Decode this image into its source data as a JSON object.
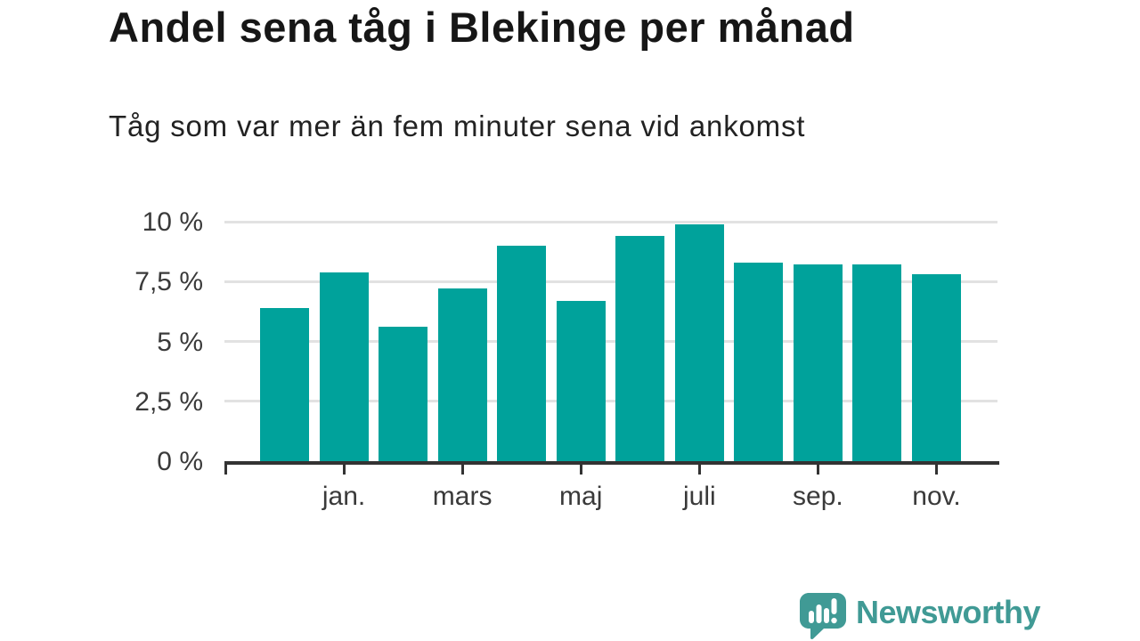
{
  "chart_data": {
    "type": "bar",
    "title": "Andel sena tåg i Blekinge per månad",
    "subtitle": "Tåg som var mer än fem minuter sena vid ankomst",
    "unit": "%",
    "values": [
      6.4,
      7.9,
      5.6,
      7.2,
      9.0,
      6.7,
      9.4,
      9.9,
      8.3,
      8.2,
      8.2,
      7.8
    ],
    "bar_count": 12,
    "x_tick_labels": [
      "jan.",
      "mars",
      "maj",
      "juli",
      "sep.",
      "nov."
    ],
    "x_tick_bar_indexes": [
      1,
      3,
      5,
      7,
      9,
      11
    ],
    "y_tick_labels": [
      "0 %",
      "2,5 %",
      "5 %",
      "7,5 %",
      "10 %"
    ],
    "y_tick_values": [
      0,
      2.5,
      5,
      7.5,
      10
    ],
    "ylim": [
      0,
      10
    ],
    "grid": true,
    "legend": "none",
    "bar_color": "#00a29b",
    "grid_color": "#e2e2e2",
    "axis_color": "#333333"
  },
  "branding": {
    "logo_text": "Newsworthy",
    "logo_color": "#409a95",
    "logo_icon": "speech-bubble-with-bar-chart-and-exclamation"
  }
}
